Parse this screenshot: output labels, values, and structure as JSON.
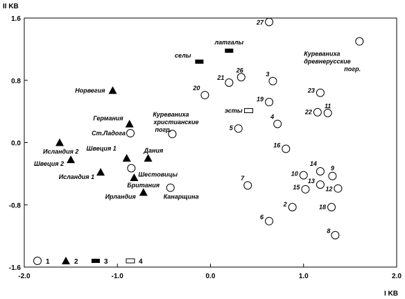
{
  "chart_data": {
    "type": "scatter",
    "xlabel": "I KB",
    "ylabel": "II KB",
    "xlim": [
      -2.0,
      2.0
    ],
    "ylim": [
      -1.6,
      1.6
    ],
    "x_ticks": [
      "-2.0",
      "-1.0",
      "0.0",
      "1.0",
      "2.0"
    ],
    "y_ticks": [
      "1.6",
      "0.8",
      "0.0",
      "-0.8",
      "-1.6"
    ],
    "grid": false,
    "legend": {
      "placement": "bottom-left",
      "entries": [
        {
          "symbol": "circle",
          "label": "1"
        },
        {
          "symbol": "triangle",
          "label": "2"
        },
        {
          "symbol": "filled-rect",
          "label": "3"
        },
        {
          "symbol": "open-rect",
          "label": "4"
        }
      ]
    },
    "series": [
      {
        "symbol": "circle",
        "points": [
          {
            "label": "27",
            "x": 0.63,
            "y": 1.55
          },
          {
            "label": "Куреваниха древнерусские погр.",
            "x": 1.6,
            "y": 1.3
          },
          {
            "label": "26",
            "x": 0.33,
            "y": 0.84
          },
          {
            "label": "21",
            "x": 0.2,
            "y": 0.77
          },
          {
            "label": "3",
            "x": 0.67,
            "y": 0.79
          },
          {
            "label": "20",
            "x": -0.06,
            "y": 0.61
          },
          {
            "label": "23",
            "x": 1.18,
            "y": 0.64
          },
          {
            "label": "19",
            "x": 0.63,
            "y": 0.52
          },
          {
            "label": "22",
            "x": 1.15,
            "y": 0.39
          },
          {
            "label": "11",
            "x": 1.26,
            "y": 0.38
          },
          {
            "label": "4",
            "x": 0.72,
            "y": 0.24
          },
          {
            "label": "5",
            "x": 0.3,
            "y": 0.18
          },
          {
            "label": "Ст.Ладога",
            "x": -0.86,
            "y": 0.12
          },
          {
            "label": "Куреваниха христианские погр.",
            "x": -0.41,
            "y": 0.11
          },
          {
            "label": "16",
            "x": 0.81,
            "y": -0.08
          },
          {
            "label": "Шестовицы",
            "x": -0.85,
            "y": -0.33
          },
          {
            "label": "14",
            "x": 1.18,
            "y": -0.37
          },
          {
            "label": "10",
            "x": 1.0,
            "y": -0.42
          },
          {
            "label": "9",
            "x": 1.31,
            "y": -0.43
          },
          {
            "label": "13",
            "x": 1.18,
            "y": -0.54
          },
          {
            "label": "7",
            "x": 0.4,
            "y": -0.55
          },
          {
            "label": "15",
            "x": 1.02,
            "y": -0.6
          },
          {
            "label": "12",
            "x": 1.37,
            "y": -0.59
          },
          {
            "label": "Канарщина",
            "x": -0.43,
            "y": -0.58
          },
          {
            "label": "2",
            "x": 0.88,
            "y": -0.83
          },
          {
            "label": "18",
            "x": 1.3,
            "y": -0.83
          },
          {
            "label": "6",
            "x": 0.63,
            "y": -1.01
          },
          {
            "label": "8",
            "x": 1.34,
            "y": -1.19
          }
        ]
      },
      {
        "symbol": "triangle",
        "points": [
          {
            "label": "Норвегия",
            "x": -1.05,
            "y": 0.67
          },
          {
            "label": "Германия",
            "x": -0.87,
            "y": 0.24
          },
          {
            "label": "Исландия 2",
            "x": -1.62,
            "y": 0.0
          },
          {
            "label": "Швеция 2",
            "x": -1.5,
            "y": -0.22
          },
          {
            "label": "Швеция 1",
            "x": -0.9,
            "y": -0.2
          },
          {
            "label": "Дания",
            "x": -0.67,
            "y": -0.2
          },
          {
            "label": "Исландия 1",
            "x": -1.18,
            "y": -0.38
          },
          {
            "label": "Британия",
            "x": -0.82,
            "y": -0.45
          },
          {
            "label": "Ирландия",
            "x": -0.72,
            "y": -0.64
          }
        ]
      },
      {
        "symbol": "filled-rect",
        "points": [
          {
            "label": "латгалы",
            "x": 0.2,
            "y": 1.18
          },
          {
            "label": "селы",
            "x": -0.12,
            "y": 1.04
          }
        ]
      },
      {
        "symbol": "open-rect",
        "points": [
          {
            "label": "эсты",
            "x": 0.41,
            "y": 0.41
          }
        ]
      }
    ]
  },
  "colors": {
    "ink": "#000000",
    "background": "#ffffff"
  }
}
